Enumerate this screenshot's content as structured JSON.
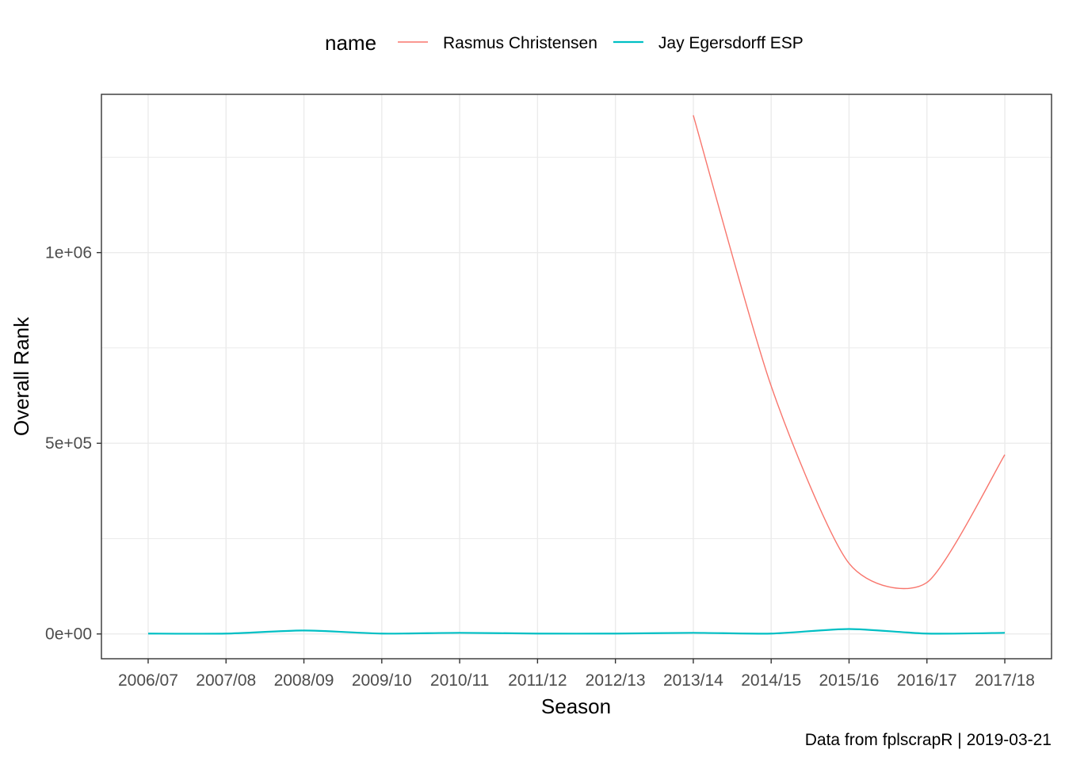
{
  "chart_data": {
    "type": "line",
    "title": "",
    "xlabel": "Season",
    "ylabel": "Overall Rank",
    "caption": "Data from fplscrapR | 2019-03-21",
    "legend": {
      "title": "name",
      "position": "top"
    },
    "grid": true,
    "categories": [
      "2006/07",
      "2007/08",
      "2008/09",
      "2009/10",
      "2010/11",
      "2011/12",
      "2012/13",
      "2013/14",
      "2014/15",
      "2015/16",
      "2016/17",
      "2017/18"
    ],
    "ylim": [
      -65000,
      1415000
    ],
    "yticks": [
      {
        "value": 0,
        "label": "0e+00"
      },
      {
        "value": 500000,
        "label": "5e+05"
      },
      {
        "value": 1000000,
        "label": "1e+06"
      }
    ],
    "series": [
      {
        "name": "Rasmus Christensen",
        "color": "#F8766D",
        "values": [
          null,
          null,
          null,
          null,
          null,
          null,
          null,
          1360000,
          650000,
          185000,
          135000,
          470000
        ]
      },
      {
        "name": "Jay Egersdorff ESP",
        "color": "#00BFC4",
        "values": [
          1000,
          1000,
          9000,
          1000,
          3000,
          1000,
          1000,
          3000,
          1000,
          13000,
          1000,
          3000
        ]
      }
    ]
  }
}
